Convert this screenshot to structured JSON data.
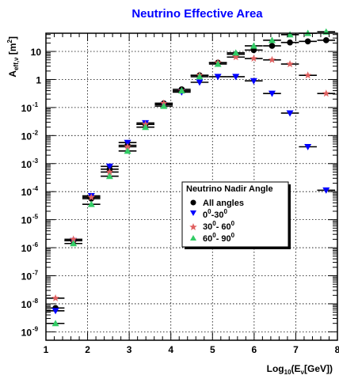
{
  "chart_data": {
    "type": "scatter",
    "title": "Neutrino Effective Area",
    "xlabel": {
      "base": "Log",
      "sub1": "10",
      "mid": "(E",
      "sub2": "ν",
      "tail": "[GeV])"
    },
    "ylabel": {
      "base": "A",
      "sub": "eff,ν",
      "unit": " [m",
      "sup": "2",
      "close": "]"
    },
    "x_ticks": [
      "1",
      "2",
      "3",
      "4",
      "5",
      "6",
      "7",
      "8"
    ],
    "y_ticks": [
      {
        "exp": -9,
        "label": "10",
        "sup": "-9"
      },
      {
        "exp": -8,
        "label": "10",
        "sup": "-8"
      },
      {
        "exp": -7,
        "label": "10",
        "sup": "-7"
      },
      {
        "exp": -6,
        "label": "10",
        "sup": "-6"
      },
      {
        "exp": -5,
        "label": "10",
        "sup": "-5"
      },
      {
        "exp": -4,
        "label": "10",
        "sup": "-4"
      },
      {
        "exp": -3,
        "label": "10",
        "sup": "-3"
      },
      {
        "exp": -2,
        "label": "10",
        "sup": "-2"
      },
      {
        "exp": -1,
        "label": "10",
        "sup": "-1"
      },
      {
        "exp": 0,
        "label": "1",
        "sup": ""
      },
      {
        "exp": 1,
        "label": "10",
        "sup": ""
      }
    ],
    "xlim": [
      1,
      8
    ],
    "ylim_log10": [
      -9.3,
      1.65
    ],
    "log_y": true,
    "grid": true,
    "legend": {
      "title": "Neutrino Nadir Angle",
      "position": "center-right",
      "entries": [
        {
          "label": "All angles",
          "marker": "circle",
          "color": "#000000"
        },
        {
          "label": "0",
          "sup1": "0",
          "mid": "-30",
          "sup2": "0",
          "marker": "triangle-down",
          "color": "#0000ff"
        },
        {
          "label": "30",
          "sup1": "0",
          "mid": "- 60",
          "sup2": "0",
          "marker": "star",
          "color": "#e06060"
        },
        {
          "label": "60",
          "sup1": "0",
          "mid": "- 90",
          "sup2": "0",
          "marker": "triangle-up",
          "color": "#33cc66"
        }
      ]
    },
    "series": [
      {
        "name": "All angles",
        "marker": "circle",
        "color": "#000000",
        "x": [
          1.23,
          1.66,
          2.09,
          2.53,
          2.96,
          3.39,
          3.83,
          4.26,
          4.69,
          5.13,
          5.56,
          5.99,
          6.43,
          6.86,
          7.29,
          7.73
        ],
        "log_y": [
          -8.15,
          -5.75,
          -4.25,
          -3.2,
          -2.35,
          -1.6,
          -0.85,
          -0.35,
          0.15,
          0.6,
          0.9,
          1.05,
          1.2,
          1.32,
          1.36,
          1.4
        ]
      },
      {
        "name": "0-30",
        "marker": "triangle-down",
        "color": "#0000ff",
        "x": [
          1.23,
          1.66,
          2.09,
          2.53,
          2.96,
          3.39,
          3.83,
          4.26,
          4.69,
          5.13,
          5.56,
          5.99,
          6.43,
          6.86,
          7.29,
          7.73
        ],
        "log_y": [
          -8.25,
          -5.75,
          -4.15,
          -3.1,
          -2.25,
          -1.55,
          -0.9,
          -0.45,
          -0.1,
          0.1,
          0.1,
          -0.05,
          -0.5,
          -1.2,
          -2.4,
          -3.95
        ]
      },
      {
        "name": "30-60",
        "marker": "star",
        "color": "#e06060",
        "x": [
          1.23,
          1.66,
          2.09,
          2.53,
          2.96,
          3.39,
          3.83,
          4.26,
          4.69,
          5.13,
          5.56,
          5.99,
          6.43,
          6.86,
          7.29,
          7.73
        ],
        "log_y": [
          -7.8,
          -5.7,
          -4.2,
          -3.3,
          -2.4,
          -1.6,
          -0.85,
          -0.4,
          0.15,
          0.6,
          0.8,
          0.75,
          0.7,
          0.55,
          0.15,
          -0.5
        ]
      },
      {
        "name": "60-90",
        "marker": "triangle-up",
        "color": "#33cc66",
        "x": [
          1.23,
          1.66,
          2.09,
          2.53,
          2.96,
          3.39,
          3.83,
          4.26,
          4.69,
          5.13,
          5.56,
          5.99,
          6.43,
          6.86,
          7.29,
          7.73
        ],
        "log_y": [
          -8.7,
          -5.85,
          -4.45,
          -3.45,
          -2.55,
          -1.7,
          -0.95,
          -0.4,
          0.1,
          0.55,
          0.95,
          1.2,
          1.4,
          1.6,
          1.65,
          1.7
        ]
      }
    ]
  }
}
